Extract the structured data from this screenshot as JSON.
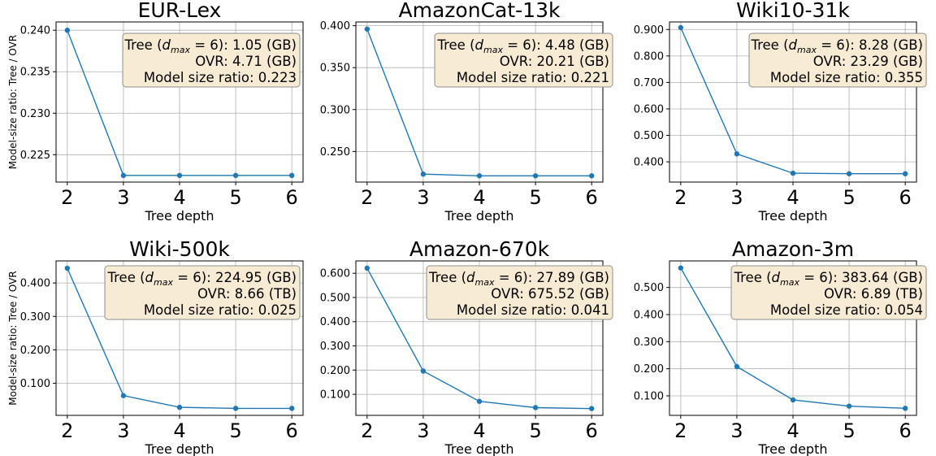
{
  "ylabel": "Model-size ratio: Tree / OVR",
  "xlabel": "Tree depth",
  "series_color": "#1f77b4",
  "annotation_labels": {
    "tree_prefix": "Tree (",
    "tree_dmax": "d",
    "tree_sub": "max",
    "tree_eq": " = 6): ",
    "ovr_prefix": "OVR: ",
    "ratio_prefix": "Model size ratio: "
  },
  "chart_data": [
    {
      "type": "line",
      "title": "EUR-Lex",
      "x": [
        2,
        3,
        4,
        5,
        6
      ],
      "y": [
        0.24,
        0.2225,
        0.2225,
        0.2225,
        0.2225
      ],
      "ylim": [
        0.2217,
        0.241
      ],
      "yticks": [
        0.225,
        0.23,
        0.235,
        0.24
      ],
      "ytick_labels": [
        "0.225",
        "0.230",
        "0.235",
        "0.240"
      ],
      "grid": true,
      "annotation": {
        "tree_size": "1.05 (GB)",
        "ovr_size": "4.71 (GB)",
        "ratio": "0.223"
      }
    },
    {
      "type": "line",
      "title": "AmazonCat-13k",
      "x": [
        2,
        3,
        4,
        5,
        6
      ],
      "y": [
        0.396,
        0.223,
        0.221,
        0.221,
        0.221
      ],
      "ylim": [
        0.2135,
        0.4045
      ],
      "yticks": [
        0.25,
        0.3,
        0.35,
        0.4
      ],
      "ytick_labels": [
        "0.250",
        "0.300",
        "0.350",
        "0.400"
      ],
      "grid": true,
      "annotation": {
        "tree_size": "4.48 (GB)",
        "ovr_size": "20.21 (GB)",
        "ratio": "0.221"
      }
    },
    {
      "type": "line",
      "title": "Wiki10-31k",
      "x": [
        2,
        3,
        4,
        5,
        6
      ],
      "y": [
        0.907,
        0.43,
        0.357,
        0.355,
        0.355
      ],
      "ylim": [
        0.3235,
        0.9285
      ],
      "yticks": [
        0.4,
        0.5,
        0.6,
        0.7,
        0.8,
        0.9
      ],
      "ytick_labels": [
        "0.400",
        "0.500",
        "0.600",
        "0.700",
        "0.800",
        "0.900"
      ],
      "grid": true,
      "annotation": {
        "tree_size": "8.28 (GB)",
        "ovr_size": "23.29 (GB)",
        "ratio": "0.355"
      }
    },
    {
      "type": "line",
      "title": "Wiki-500k",
      "x": [
        2,
        3,
        4,
        5,
        6
      ],
      "y": [
        0.444,
        0.063,
        0.028,
        0.025,
        0.025
      ],
      "ylim": [
        0.004,
        0.466
      ],
      "yticks": [
        0.1,
        0.2,
        0.3,
        0.4
      ],
      "ytick_labels": [
        "0.100",
        "0.200",
        "0.300",
        "0.400"
      ],
      "grid": true,
      "annotation": {
        "tree_size": "224.95 (GB)",
        "ovr_size": "8.66 (TB)",
        "ratio": "0.025"
      }
    },
    {
      "type": "line",
      "title": "Amazon-670k",
      "x": [
        2,
        3,
        4,
        5,
        6
      ],
      "y": [
        0.621,
        0.196,
        0.071,
        0.045,
        0.041
      ],
      "ylim": [
        0.013,
        0.651
      ],
      "yticks": [
        0.1,
        0.2,
        0.3,
        0.4,
        0.5,
        0.6
      ],
      "ytick_labels": [
        "0.100",
        "0.200",
        "0.300",
        "0.400",
        "0.500",
        "0.600"
      ],
      "grid": true,
      "annotation": {
        "tree_size": "27.89 (GB)",
        "ovr_size": "675.52 (GB)",
        "ratio": "0.041"
      }
    },
    {
      "type": "line",
      "title": "Amazon-3m",
      "x": [
        2,
        3,
        4,
        5,
        6
      ],
      "y": [
        0.572,
        0.208,
        0.085,
        0.062,
        0.054
      ],
      "ylim": [
        0.028,
        0.598
      ],
      "yticks": [
        0.1,
        0.2,
        0.3,
        0.4,
        0.5
      ],
      "ytick_labels": [
        "0.100",
        "0.200",
        "0.300",
        "0.400",
        "0.500"
      ],
      "grid": true,
      "annotation": {
        "tree_size": "383.64 (GB)",
        "ovr_size": "6.89 (TB)",
        "ratio": "0.054"
      }
    }
  ]
}
